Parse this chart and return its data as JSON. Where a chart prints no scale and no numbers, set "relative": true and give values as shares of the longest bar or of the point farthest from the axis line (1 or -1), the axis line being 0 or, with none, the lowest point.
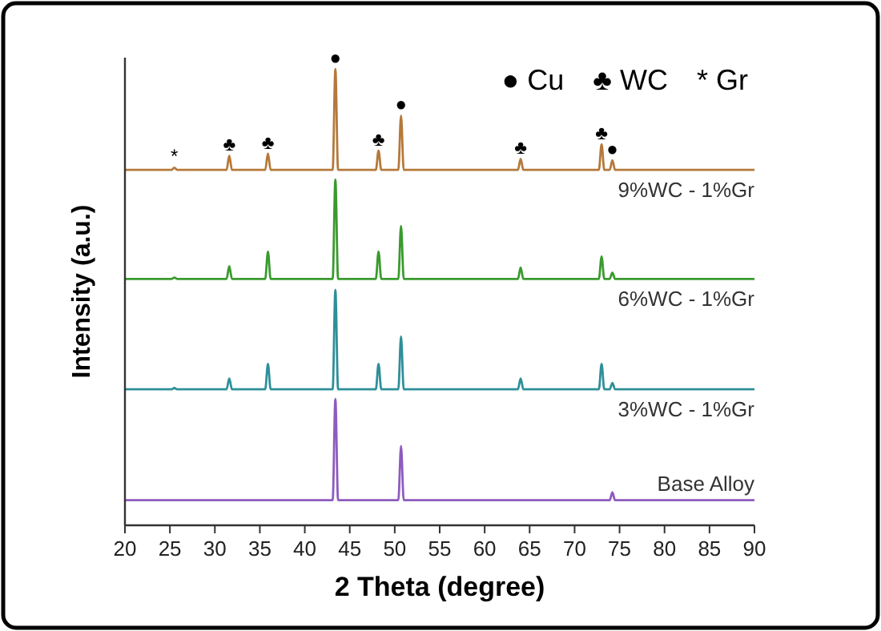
{
  "chart_data": {
    "type": "line",
    "relative": true,
    "xlabel": "2 Theta (degree)",
    "ylabel": "Intensity (a.u.)",
    "xlim": [
      20,
      90
    ],
    "xticks": [
      20,
      25,
      30,
      35,
      40,
      45,
      50,
      55,
      60,
      65,
      70,
      75,
      80,
      85,
      90
    ],
    "grid": false,
    "marker": "none",
    "line_style": "solid",
    "series": [
      {
        "name": "9%WC - 1%Gr",
        "color": "#b5793a",
        "x": [
          20,
          25.2,
          25.5,
          25.8,
          31.3,
          31.6,
          31.9,
          35.6,
          35.9,
          36.2,
          43.1,
          43.4,
          43.7,
          47.9,
          48.2,
          48.5,
          50.4,
          50.7,
          51.0,
          63.7,
          64.0,
          64.3,
          72.7,
          73.0,
          73.3,
          73.9,
          74.2,
          74.5,
          90
        ],
        "values": [
          0.779,
          0.779,
          0.784,
          0.779,
          0.779,
          0.81,
          0.779,
          0.779,
          0.815,
          0.779,
          0.779,
          1,
          0.779,
          0.779,
          0.821,
          0.779,
          0.779,
          0.898,
          0.779,
          0.779,
          0.803,
          0.779,
          0.779,
          0.835,
          0.779,
          0.779,
          0.8,
          0.779,
          0.779
        ]
      },
      {
        "name": "6%WC - 1%Gr",
        "color": "#3a9a2e",
        "x": [
          20,
          25.2,
          25.5,
          25.8,
          31.3,
          31.6,
          31.9,
          35.6,
          35.9,
          36.2,
          43.1,
          43.4,
          43.7,
          47.9,
          48.2,
          48.5,
          50.4,
          50.7,
          51.0,
          63.7,
          64.0,
          64.3,
          72.7,
          73.0,
          73.3,
          73.9,
          74.2,
          74.5,
          90
        ],
        "values": [
          0.54,
          0.54,
          0.543,
          0.54,
          0.54,
          0.568,
          0.54,
          0.54,
          0.6,
          0.54,
          0.54,
          0.758,
          0.54,
          0.54,
          0.6,
          0.54,
          0.54,
          0.656,
          0.54,
          0.54,
          0.565,
          0.54,
          0.54,
          0.589,
          0.54,
          0.54,
          0.554,
          0.54,
          0.54
        ]
      },
      {
        "name": "3%WC - 1%Gr",
        "color": "#2e8f99",
        "x": [
          20,
          25.2,
          25.5,
          25.8,
          31.3,
          31.6,
          31.9,
          35.6,
          35.9,
          36.2,
          43.1,
          43.4,
          43.7,
          47.9,
          48.2,
          48.5,
          50.4,
          50.7,
          51.0,
          63.7,
          64.0,
          64.3,
          72.7,
          73.0,
          73.3,
          73.9,
          74.2,
          74.5,
          90
        ],
        "values": [
          0.298,
          0.298,
          0.301,
          0.298,
          0.298,
          0.322,
          0.298,
          0.298,
          0.354,
          0.298,
          0.298,
          0.516,
          0.298,
          0.298,
          0.354,
          0.298,
          0.298,
          0.414,
          0.298,
          0.298,
          0.322,
          0.298,
          0.298,
          0.354,
          0.298,
          0.298,
          0.312,
          0.298,
          0.298
        ]
      },
      {
        "name": "Base Alloy",
        "color": "#8e5bbf",
        "x": [
          20,
          43.1,
          43.4,
          43.7,
          50.4,
          50.7,
          51.0,
          73.9,
          74.2,
          74.5,
          90
        ],
        "values": [
          0.055,
          0.055,
          0.277,
          0.055,
          0.055,
          0.174,
          0.055,
          0.055,
          0.072,
          0.055,
          0.055
        ]
      }
    ],
    "annotations": [
      "● Cu",
      "♣ WC",
      "* Gr",
      {
        "text": "*",
        "x": 25.5,
        "y": 0.784
      },
      {
        "text": "♣",
        "x": 31.6,
        "y": 0.81
      },
      {
        "text": "♣",
        "x": 35.9,
        "y": 0.815
      },
      {
        "text": "●",
        "x": 43.4,
        "y": 1
      },
      {
        "text": "♣",
        "x": 48.2,
        "y": 0.821
      },
      {
        "text": "●",
        "x": 50.7,
        "y": 0.898
      },
      {
        "text": "♣",
        "x": 64.0,
        "y": 0.803
      },
      {
        "text": "♣",
        "x": 73.0,
        "y": 0.835
      },
      {
        "text": "●",
        "x": 74.2,
        "y": 0.8
      }
    ]
  }
}
